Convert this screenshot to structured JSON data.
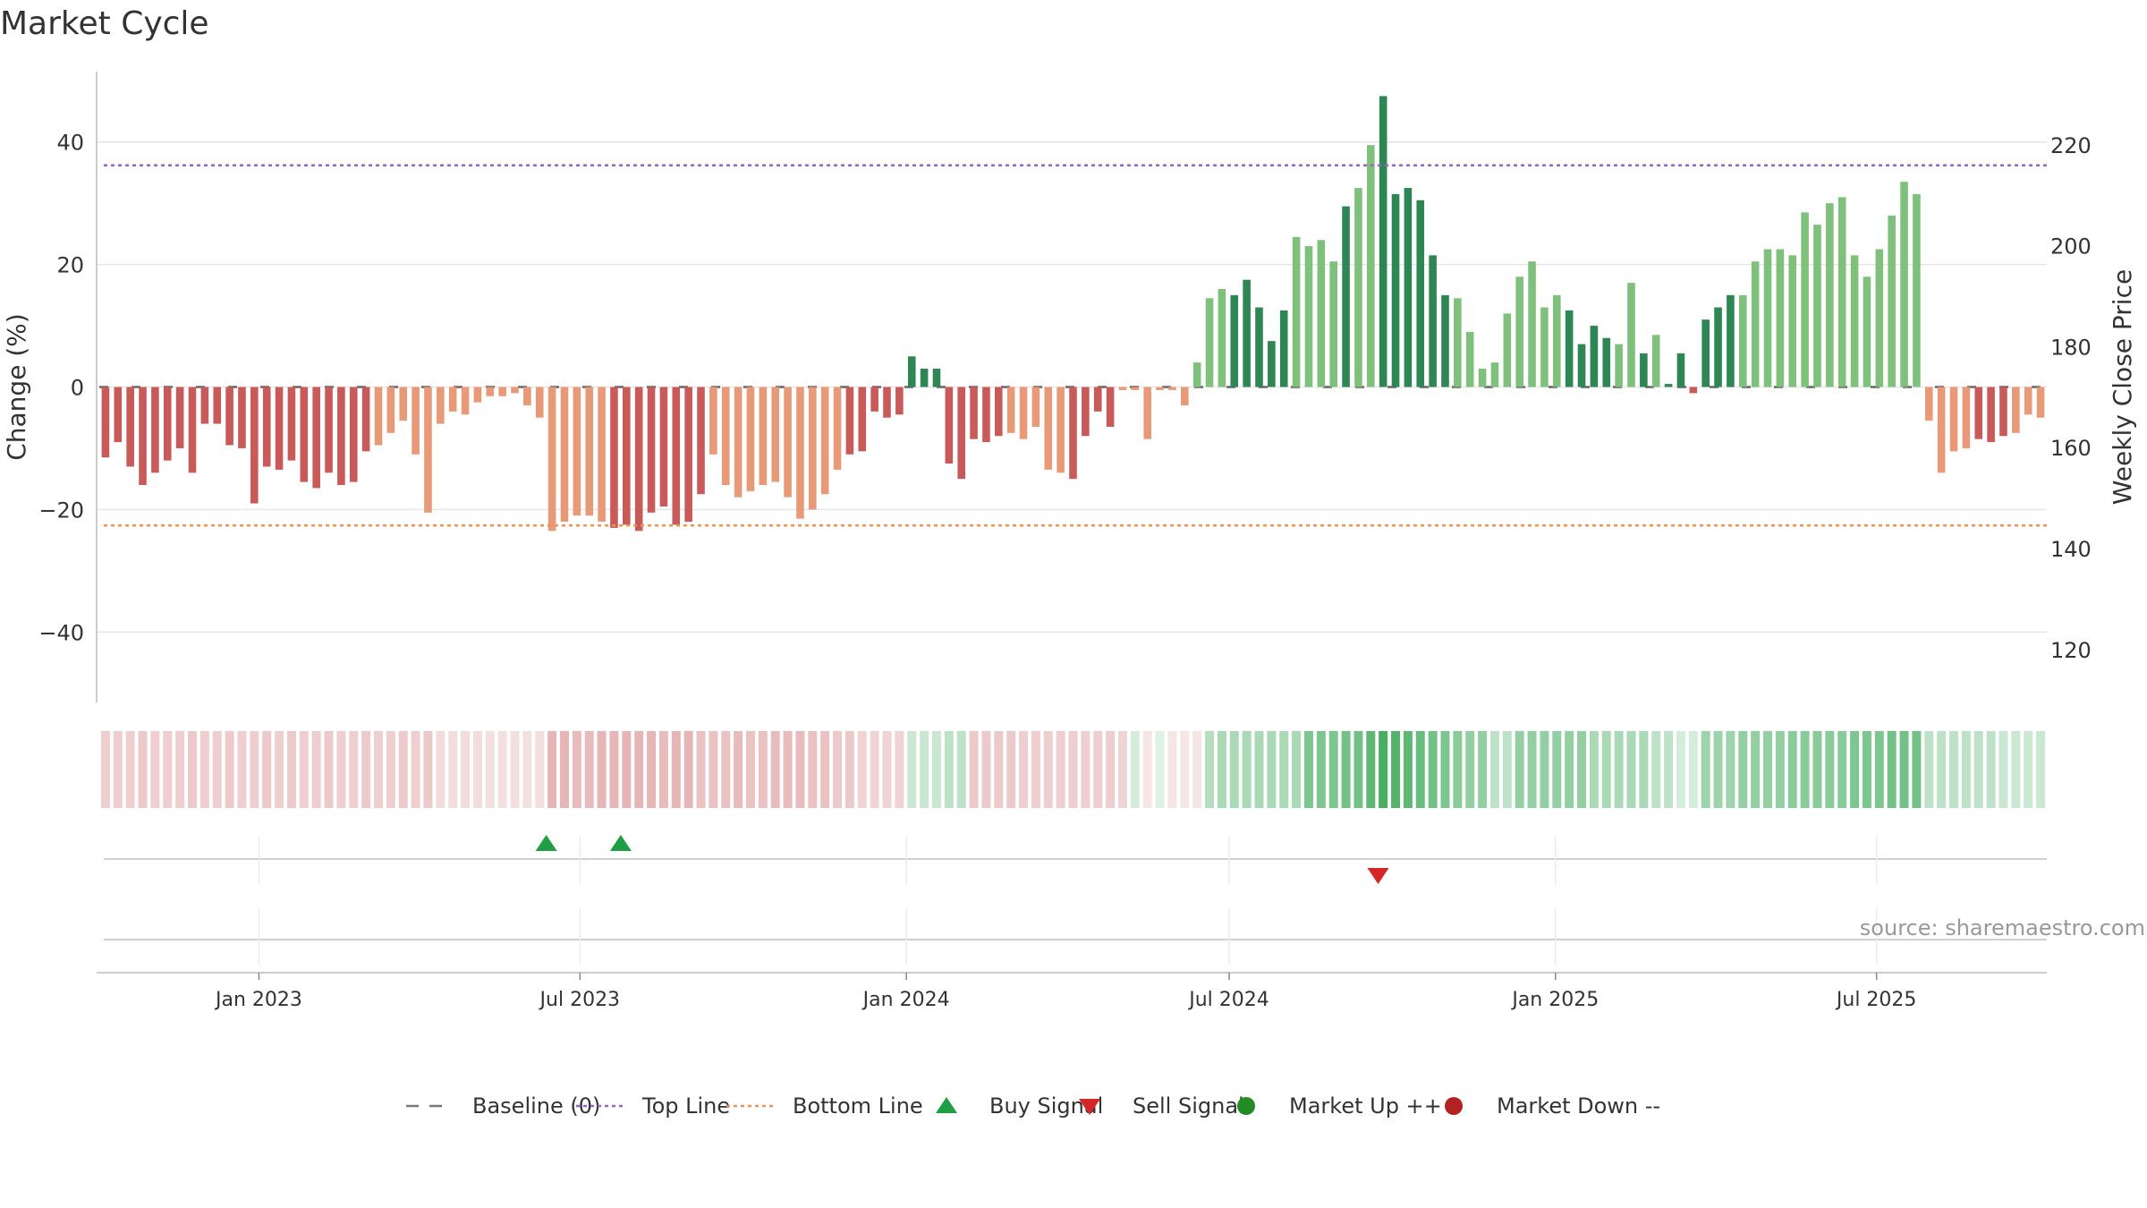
{
  "title": "Market Cycle",
  "source": "source: sharemaestro.com",
  "legend": [
    {
      "label": "Baseline (0)",
      "kind": "dash",
      "color": "#777777"
    },
    {
      "label": "Top Line",
      "kind": "dot",
      "color": "#9467bd"
    },
    {
      "label": "Bottom Line",
      "kind": "dot",
      "color": "#e8955a"
    },
    {
      "label": "Buy Signal",
      "kind": "up",
      "color": "#1f9e45"
    },
    {
      "label": "Sell Signal",
      "kind": "down",
      "color": "#d62728"
    },
    {
      "label": "Market Up ++",
      "kind": "circle",
      "color": "#238b23"
    },
    {
      "label": "Market Down --",
      "kind": "circle",
      "color": "#b22222"
    }
  ],
  "chart_data": {
    "type": "bar",
    "title": "Market Cycle",
    "ylabel": "Change (%)",
    "ylabel_right": "Weekly Close Price",
    "ylim": [
      -51.5,
      51.5
    ],
    "ylim_right": [
      109.5,
      234.5
    ],
    "yticks": [
      -40,
      -20,
      0,
      20,
      40
    ],
    "yticks_right": [
      120,
      140,
      160,
      180,
      200,
      220
    ],
    "top_line": 36.2,
    "bottom_line": -22.6,
    "x_start": "2022-10-03",
    "x_end": "2025-10-05",
    "x_tick_labels": [
      {
        "date": "2023-01-01",
        "label": "Jan 2023"
      },
      {
        "date": "2023-07-01",
        "label": "Jul 2023"
      },
      {
        "date": "2024-01-01",
        "label": "Jan 2024"
      },
      {
        "date": "2024-07-01",
        "label": "Jul 2024"
      },
      {
        "date": "2025-01-01",
        "label": "Jan 2025"
      },
      {
        "date": "2025-07-01",
        "label": "Jul 2025"
      }
    ],
    "colors": {
      "neg_dark": "#c95a5a",
      "neg_light": "#e89a78",
      "pos_dark": "#2e8655",
      "pos_light": "#80c07d",
      "top_line": "#9467bd",
      "bottom_line": "#e8955a"
    },
    "values": [
      -11.5,
      -9,
      -13,
      -16,
      -14,
      -12,
      -10,
      -14,
      -6,
      -6,
      -9.5,
      -10,
      -19,
      -13,
      -13.5,
      -12,
      -15.5,
      -16.5,
      -14,
      -16,
      -15.5,
      -10.5,
      -9.5,
      -7.5,
      -5.5,
      -11,
      -20.5,
      -6,
      -4,
      -4.5,
      -2.5,
      -1.5,
      -1.5,
      -1,
      -3,
      -5,
      -23.5,
      -22,
      -21,
      -21,
      -22,
      -23,
      -22.5,
      -23.5,
      -20.5,
      -19.5,
      -22.5,
      -22,
      -17.5,
      -11,
      -16,
      -18,
      -17,
      -16,
      -15.5,
      -18,
      -21.5,
      -20,
      -17.5,
      -13.5,
      -11,
      -10.5,
      -4,
      -5,
      -4.5,
      5,
      3,
      3,
      -12.5,
      -15,
      -8.5,
      -9,
      -8,
      -7.5,
      -8.5,
      -6.5,
      -13.5,
      -14,
      -15,
      -8,
      -4,
      -6.5,
      -0.5,
      -0.5,
      -8.5,
      -0.5,
      -0.5,
      -3,
      4,
      14.5,
      16,
      15,
      17.5,
      13,
      7.5,
      12.5,
      24.5,
      23,
      24,
      20.5,
      29.5,
      32.5,
      39.5,
      47.5,
      31.5,
      32.5,
      30.5,
      21.5,
      15,
      14.5,
      9,
      3,
      4,
      12,
      18,
      20.5,
      13,
      15,
      12.5,
      7,
      10,
      8,
      7,
      17,
      5.5,
      8.5,
      0.5,
      5.5,
      -1,
      11,
      13,
      15,
      15,
      20.5,
      22.5,
      22.5,
      21.5,
      28.5,
      26.5,
      30,
      31,
      21.5,
      18,
      22.5,
      28,
      33.5,
      31.5,
      -5.5,
      -14,
      -10.5,
      -10,
      -8.5,
      -9,
      -8,
      -7.5,
      -4.5,
      -5
    ],
    "shades": "ddddddddddddddddddddddlllllllllllllllllllddddddddllllllllllldddddddddddddlllllddddllllllllldddddlllldllddddddlllllllllddddlldlddddddlllllllllllllllllllddd",
    "regime_band": [
      0.28,
      0.28,
      0.28,
      0.3,
      0.28,
      0.28,
      0.28,
      0.3,
      0.28,
      0.28,
      0.3,
      0.28,
      0.28,
      0.3,
      0.28,
      0.3,
      0.28,
      0.28,
      0.3,
      0.28,
      0.28,
      0.3,
      0.28,
      0.28,
      0.3,
      0.28,
      0.3,
      0.2,
      0.2,
      0.2,
      0.2,
      0.18,
      0.18,
      0.18,
      0.18,
      0.18,
      0.42,
      0.42,
      0.38,
      0.38,
      0.42,
      0.42,
      0.42,
      0.42,
      0.42,
      0.38,
      0.42,
      0.42,
      0.35,
      0.35,
      0.35,
      0.38,
      0.35,
      0.35,
      0.38,
      0.38,
      0.38,
      0.35,
      0.35,
      0.3,
      0.3,
      0.25,
      0.25,
      0.25,
      0.25,
      -0.25,
      -0.25,
      -0.25,
      -0.3,
      -0.3,
      0.3,
      0.3,
      0.3,
      0.3,
      0.28,
      0.28,
      0.28,
      0.28,
      0.28,
      0.28,
      0.28,
      0.28,
      0.25,
      -0.2,
      0.15,
      -0.15,
      0.15,
      0.15,
      0.15,
      -0.35,
      -0.4,
      -0.4,
      -0.4,
      -0.4,
      -0.4,
      -0.4,
      -0.4,
      -0.6,
      -0.6,
      -0.6,
      -0.65,
      -0.65,
      -0.75,
      -0.85,
      -0.8,
      -0.75,
      -0.7,
      -0.65,
      -0.6,
      -0.55,
      -0.5,
      -0.5,
      -0.3,
      -0.3,
      -0.5,
      -0.5,
      -0.5,
      -0.5,
      -0.5,
      -0.5,
      -0.4,
      -0.4,
      -0.4,
      -0.4,
      -0.4,
      -0.3,
      -0.3,
      -0.2,
      -0.2,
      -0.45,
      -0.45,
      -0.45,
      -0.5,
      -0.5,
      -0.5,
      -0.5,
      -0.55,
      -0.55,
      -0.55,
      -0.55,
      -0.55,
      -0.6,
      -0.6,
      -0.6,
      -0.65,
      -0.65,
      -0.65,
      -0.3,
      -0.3,
      -0.3,
      -0.3,
      -0.3,
      -0.3,
      -0.25,
      -0.25,
      -0.25,
      -0.25
    ],
    "buy_signals": [
      "2023-06-12",
      "2023-07-24"
    ],
    "sell_signals": [
      "2024-09-23"
    ]
  }
}
